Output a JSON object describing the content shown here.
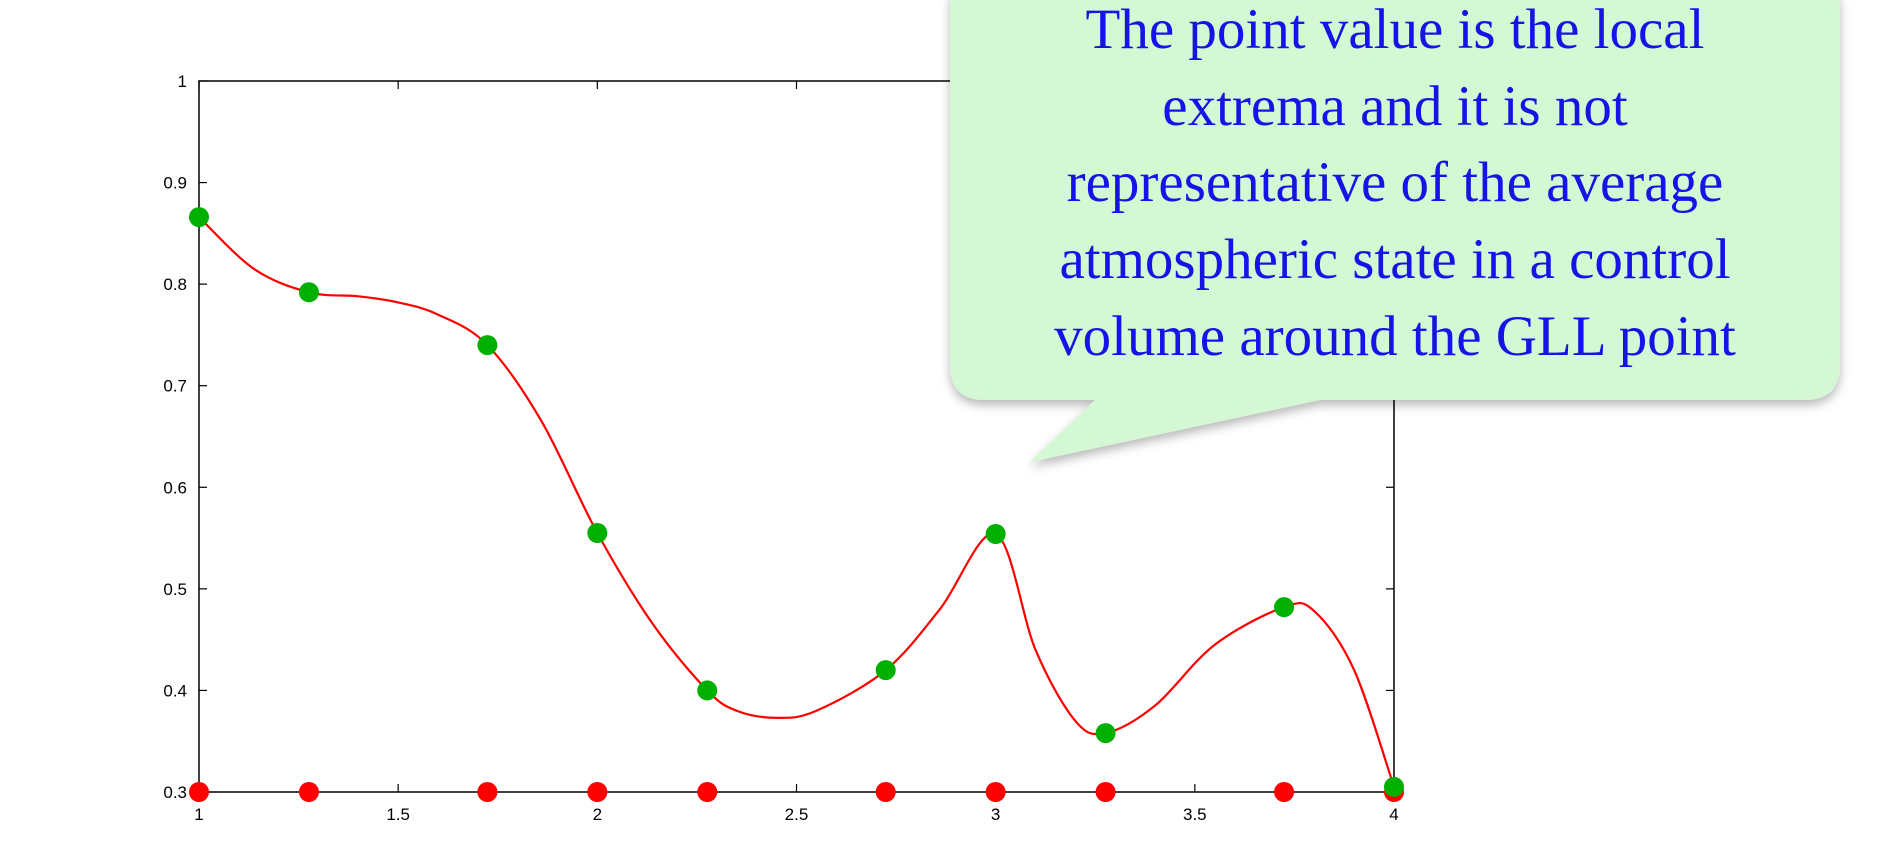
{
  "chart_data": {
    "type": "scatter",
    "xlim": [
      1,
      4
    ],
    "ylim": [
      0.3,
      1
    ],
    "xticks": [
      "1",
      "1.5",
      "2",
      "2.5",
      "3",
      "3.5",
      "4"
    ],
    "yticks": [
      "0.3",
      "0.4",
      "0.5",
      "0.6",
      "0.7",
      "0.8",
      "0.9",
      "1"
    ],
    "grid": false,
    "series": [
      {
        "role": "gll-nodes",
        "color": "#ff0000",
        "x": [
          1.0,
          1.276,
          1.724,
          2.0,
          2.276,
          2.724,
          3.0,
          3.276,
          3.724,
          4.0
        ],
        "y": [
          0.3,
          0.3,
          0.3,
          0.3,
          0.3,
          0.3,
          0.3,
          0.3,
          0.3,
          0.3
        ]
      },
      {
        "role": "point-values",
        "color": "#00b000",
        "x": [
          1.0,
          1.276,
          1.724,
          2.0,
          2.276,
          2.724,
          3.0,
          3.276,
          3.724,
          4.0
        ],
        "y": [
          0.866,
          0.792,
          0.74,
          0.555,
          0.4,
          0.42,
          0.554,
          0.358,
          0.482,
          0.305
        ]
      },
      {
        "role": "interpolant",
        "color": "#ff0000",
        "type": "line",
        "x": [
          1.0,
          1.138,
          1.276,
          1.4,
          1.5,
          1.6,
          1.724,
          1.86,
          2.0,
          2.14,
          2.276,
          2.35,
          2.45,
          2.55,
          2.724,
          2.86,
          3.0,
          3.1,
          3.2,
          3.276,
          3.4,
          3.55,
          3.724,
          3.8,
          3.9,
          4.0
        ],
        "y": [
          0.866,
          0.815,
          0.792,
          0.788,
          0.782,
          0.77,
          0.74,
          0.665,
          0.555,
          0.465,
          0.4,
          0.38,
          0.373,
          0.38,
          0.42,
          0.48,
          0.554,
          0.44,
          0.37,
          0.358,
          0.385,
          0.445,
          0.482,
          0.478,
          0.42,
          0.305
        ]
      }
    ],
    "annotation": "The point value is the local extrema and it is not representative of the average atmospheric state in a control volume around the GLL point"
  },
  "callout": {
    "lines": [
      "The point value is the local",
      "extrema and it is not",
      "representative of the average",
      "atmospheric state in a control",
      "volume around the GLL point"
    ],
    "fill": "#d4f7d4",
    "text_color": "#1414e6"
  }
}
